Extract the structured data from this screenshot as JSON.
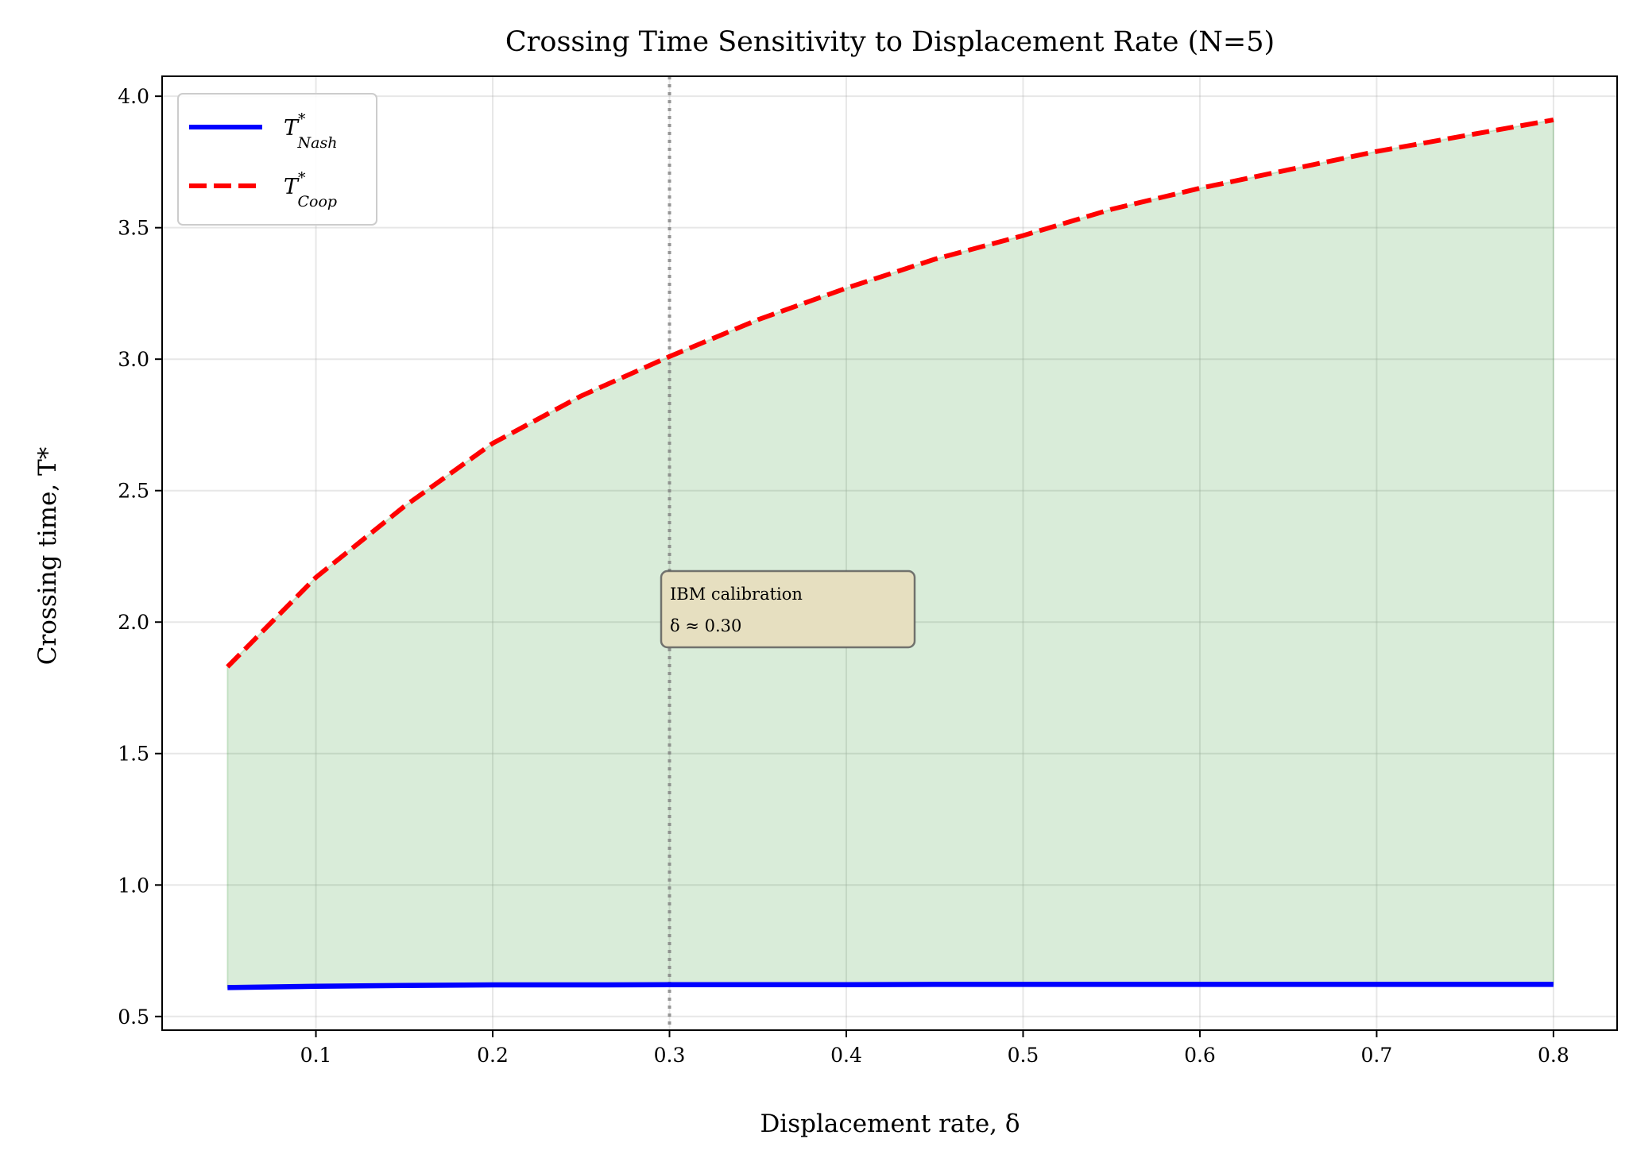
{
  "chart_data": {
    "type": "line",
    "title": "Crossing Time Sensitivity to Displacement Rate (N=5)",
    "xlabel": "Displacement rate, δ",
    "ylabel": "Crossing time, T*",
    "xlim": [
      0.013,
      0.836
    ],
    "ylim": [
      0.448,
      4.076
    ],
    "xticks": [
      0.1,
      0.2,
      0.3,
      0.4,
      0.5,
      0.6,
      0.7,
      0.8
    ],
    "xtick_labels": [
      "0.1",
      "0.2",
      "0.3",
      "0.4",
      "0.5",
      "0.6",
      "0.7",
      "0.8"
    ],
    "yticks": [
      0.5,
      1.0,
      1.5,
      2.0,
      2.5,
      3.0,
      3.5,
      4.0
    ],
    "ytick_labels": [
      "0.5",
      "1.0",
      "1.5",
      "2.0",
      "2.5",
      "3.0",
      "3.5",
      "4.0"
    ],
    "grid": true,
    "legend_position": "top-left",
    "x": [
      0.05,
      0.1,
      0.15,
      0.2,
      0.25,
      0.3,
      0.35,
      0.4,
      0.45,
      0.5,
      0.55,
      0.6,
      0.65,
      0.7,
      0.75,
      0.8
    ],
    "series": [
      {
        "name": "T*_Nash",
        "name_main": "T",
        "name_sup": "*",
        "name_sub": "Nash",
        "color": "#0000ff",
        "style": "solid",
        "values": [
          0.61,
          0.615,
          0.618,
          0.62,
          0.62,
          0.621,
          0.621,
          0.621,
          0.622,
          0.622,
          0.622,
          0.622,
          0.622,
          0.622,
          0.622,
          0.622
        ]
      },
      {
        "name": "T*_Coop",
        "name_main": "T",
        "name_sup": "*",
        "name_sub": "Coop",
        "color": "#ff0000",
        "style": "dashed",
        "values": [
          1.83,
          2.17,
          2.44,
          2.68,
          2.86,
          3.01,
          3.15,
          3.27,
          3.38,
          3.47,
          3.57,
          3.65,
          3.72,
          3.79,
          3.85,
          3.91
        ]
      }
    ],
    "fill_between": {
      "color": "#008000",
      "alpha": 0.15
    },
    "vline": {
      "x": 0.3,
      "color": "#808080",
      "style": "dotted"
    },
    "annotation": {
      "line1": "IBM calibration",
      "line2": "δ ≈ 0.30",
      "x": 0.3,
      "y": 2.0,
      "background": "#e6dfc0"
    }
  }
}
